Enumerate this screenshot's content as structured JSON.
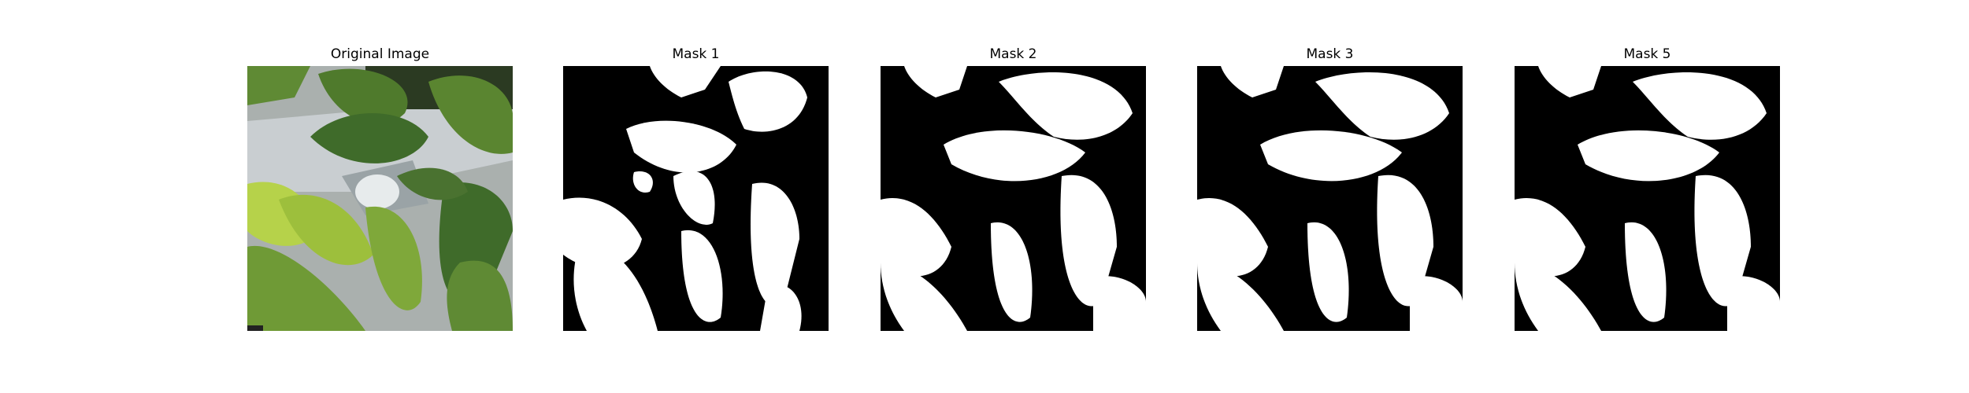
{
  "figure": {
    "panels": [
      {
        "title": "Original Image",
        "kind": "photo"
      },
      {
        "title": "Mask 1",
        "kind": "mask"
      },
      {
        "title": "Mask 2",
        "kind": "mask"
      },
      {
        "title": "Mask 3",
        "kind": "mask"
      },
      {
        "title": "Mask 5",
        "kind": "mask"
      }
    ]
  },
  "colors": {
    "mask_background": "#000000",
    "mask_foreground": "#ffffff",
    "leaf_dark": "#3f6b2a",
    "leaf_mid": "#5f8a34",
    "leaf_light": "#b6d24a",
    "pot_gray": "#c9ced1"
  }
}
